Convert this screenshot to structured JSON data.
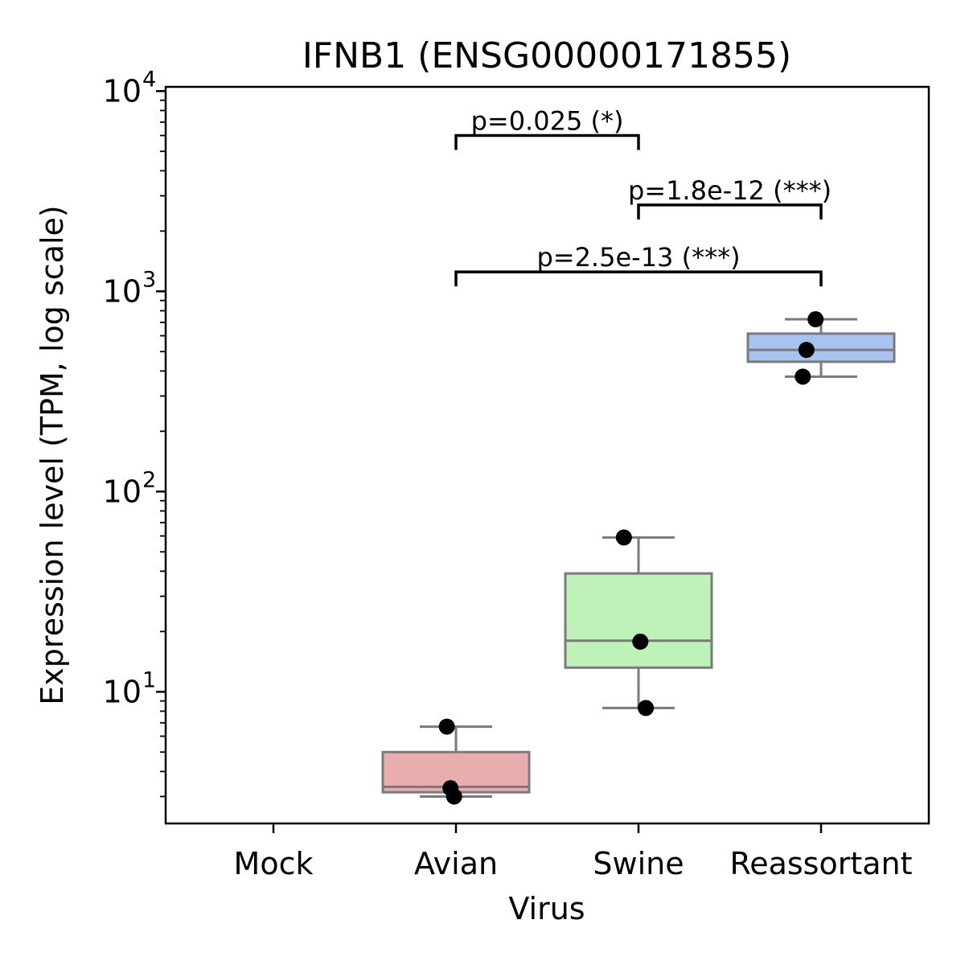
{
  "chart_data": {
    "type": "box",
    "title": "IFNB1 (ENSG00000171855)",
    "xlabel": "Virus",
    "ylabel": "Expression level (TPM, log scale)",
    "yscale": "log",
    "ylim": [
      2.2,
      10500
    ],
    "y_ticks": [
      {
        "value": 10,
        "base": "10",
        "exponent": "1"
      },
      {
        "value": 100,
        "base": "10",
        "exponent": "2"
      },
      {
        "value": 1000,
        "base": "10",
        "exponent": "3"
      },
      {
        "value": 10000,
        "base": "10",
        "exponent": "4"
      }
    ],
    "categories": [
      "Mock",
      "Avian",
      "Swine",
      "Reassortant"
    ],
    "boxes": [
      {
        "category": "Mock",
        "color": null,
        "whisker_low": null,
        "q1": null,
        "median": null,
        "q3": null,
        "whisker_high": null
      },
      {
        "category": "Avian",
        "color": "#e8aeae",
        "whisker_low": 3.0,
        "q1": 3.15,
        "median": 3.35,
        "q3": 5.0,
        "whisker_high": 6.7
      },
      {
        "category": "Swine",
        "color": "#bff2b8",
        "whisker_low": 8.3,
        "q1": 13.2,
        "median": 18.0,
        "q3": 39.0,
        "whisker_high": 59.0
      },
      {
        "category": "Reassortant",
        "color": "#a7c3ef",
        "whisker_low": 375,
        "q1": 445,
        "median": 510,
        "q3": 615,
        "whisker_high": 725
      }
    ],
    "points": [
      {
        "category": "Avian",
        "jitter": -0.05,
        "y": 6.7
      },
      {
        "category": "Avian",
        "jitter": -0.03,
        "y": 3.3
      },
      {
        "category": "Avian",
        "jitter": -0.01,
        "y": 3.0
      },
      {
        "category": "Swine",
        "jitter": -0.08,
        "y": 59.0
      },
      {
        "category": "Swine",
        "jitter": 0.01,
        "y": 17.8
      },
      {
        "category": "Swine",
        "jitter": 0.04,
        "y": 8.3
      },
      {
        "category": "Reassortant",
        "jitter": -0.03,
        "y": 725
      },
      {
        "category": "Reassortant",
        "jitter": -0.08,
        "y": 510
      },
      {
        "category": "Reassortant",
        "jitter": -0.1,
        "y": 375
      }
    ],
    "annotations": [
      {
        "from": "Avian",
        "to": "Swine",
        "y": 6000,
        "label": "p=0.025 (*)"
      },
      {
        "from": "Swine",
        "to": "Reassortant",
        "y": 2700,
        "label": "p=1.8e-12 (***)"
      },
      {
        "from": "Avian",
        "to": "Reassortant",
        "y": 1250,
        "label": "p=2.5e-13 (***)"
      }
    ],
    "colors": {
      "box_edge": "#7a7a7a",
      "point": "#000000",
      "bracket": "#000000"
    },
    "grid": false,
    "legend": null
  }
}
